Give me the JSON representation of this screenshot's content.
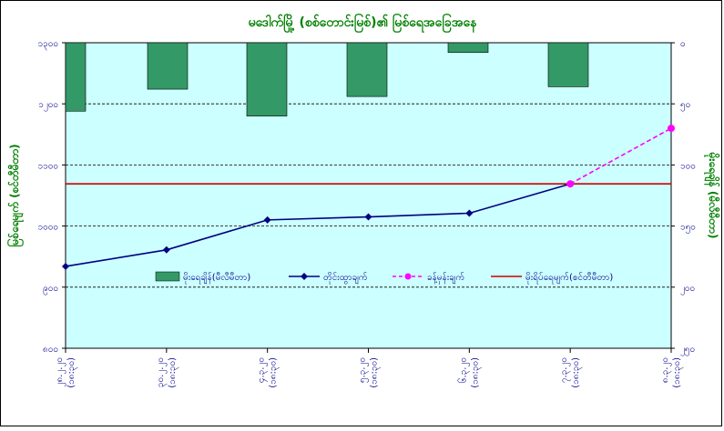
{
  "chart_data": {
    "type": "bar+line",
    "title": "မဒေါက်မြို့ (စစ်တောင်းမြစ်)၏ မြစ်ရေအခြေအနေ",
    "categories": [
      "၂၈.၂.၂၀ (၁၈:၃၀)",
      "၃၀.၂.၂၀ (၁၈:၃၀)",
      "၄.၃.၂၀ (၁၈:၃၀)",
      "၅.၃.၂၀ (၁၈:၃၀)",
      "၆.၃.၂၀ (၁၈:၃၀)",
      "၇.၃.၂၀ (၁၈:၃၀)",
      "၈.၃.၂၀ (၁၈:၃၀)"
    ],
    "left_axis": {
      "label": "မြစ်ရေမျက် (စင်တီမီတာ)",
      "ylim": [
        800,
        1300
      ],
      "tick_values": [
        800,
        900,
        1000,
        1100,
        1200,
        1300
      ],
      "tick_labels": [
        "၈၀၀",
        "၉၀၀",
        "၁၀၀၀",
        "၁၁၀၀",
        "၁၂၀၀",
        "၁၃၀၀"
      ]
    },
    "right_axis": {
      "label": "မိုးရေချိန် (မီလီမီတာ)",
      "ylim": [
        0,
        250
      ],
      "reversed": true,
      "tick_values": [
        0,
        50,
        100,
        150,
        200,
        250
      ],
      "tick_labels": [
        "၀",
        "၅၀",
        "၁၀၀",
        "၁၅၀",
        "၂၀၀",
        "၂၅၀"
      ]
    },
    "series": [
      {
        "name": "မိုးရေချိန်(မီလီမီတာ)",
        "kind": "bar",
        "axis": "right",
        "color": "#339966",
        "values": [
          56,
          38,
          60,
          44,
          8,
          36,
          null
        ]
      },
      {
        "name": "တိုင်းထွာချက်",
        "kind": "line",
        "axis": "left",
        "color": "#000080",
        "values": [
          934,
          961,
          1010,
          1015,
          1021,
          1069,
          null
        ]
      },
      {
        "name": "ခန့်မှန်းချက်",
        "kind": "dashed-line",
        "axis": "left",
        "color": "#ff00ff",
        "values": [
          null,
          null,
          null,
          null,
          null,
          1069,
          1160
        ]
      },
      {
        "name": "မိုးရိပ်ရေမျက်(စင်တီမီတာ)",
        "kind": "hline",
        "axis": "left",
        "color": "#cc0000",
        "value": 1069
      }
    ],
    "grid": true,
    "legend_position": "bottom-inside",
    "plot_background": "#ccffff"
  }
}
